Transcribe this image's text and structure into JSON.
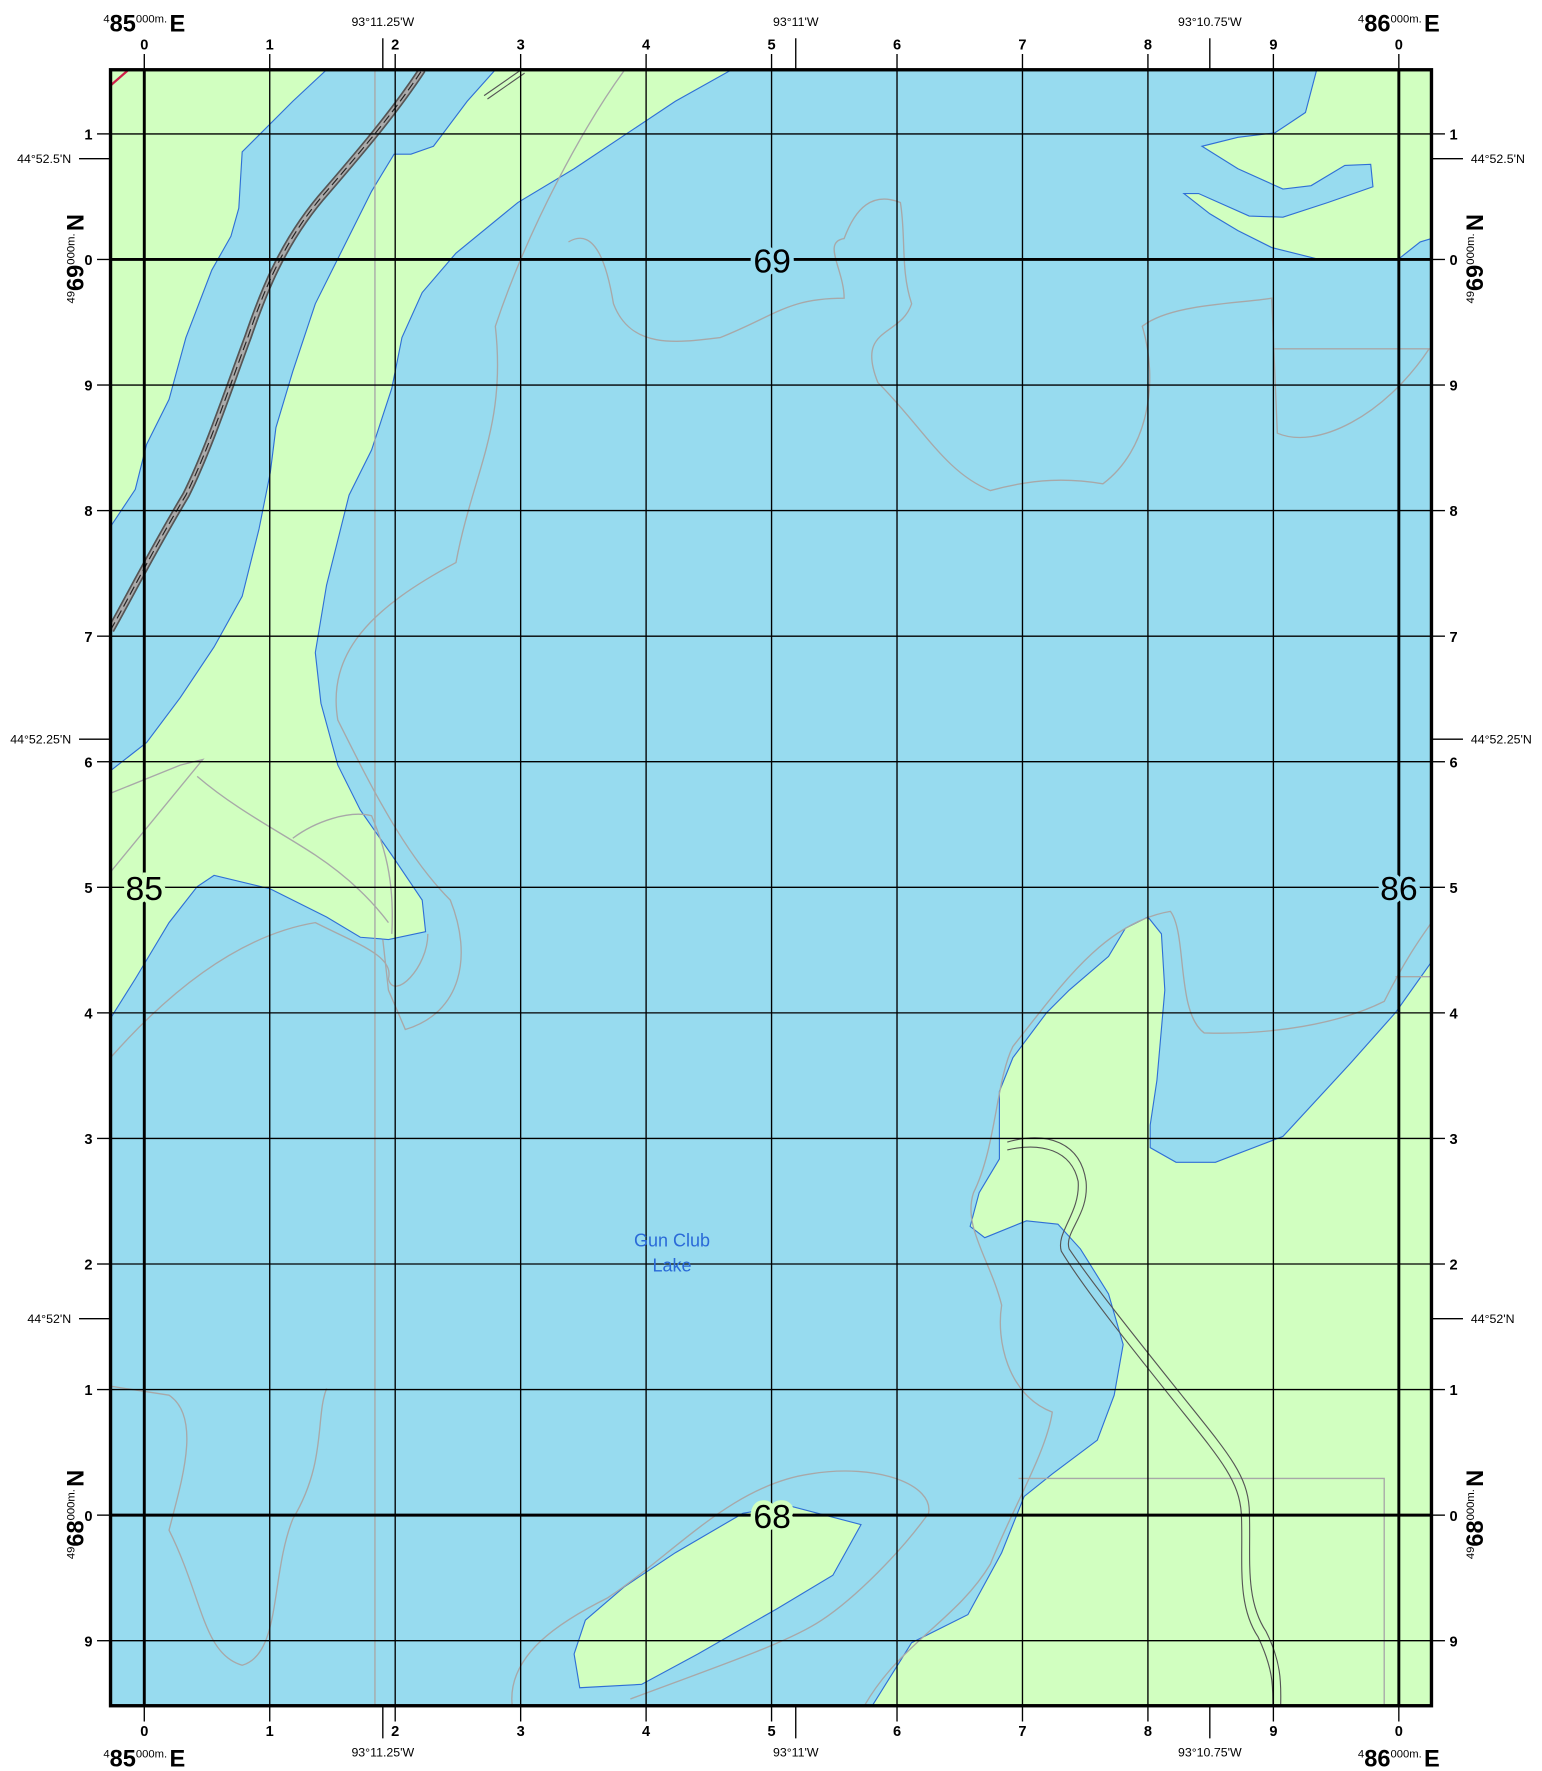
{
  "grid": {
    "easting_labels": [
      "0",
      "1",
      "2",
      "3",
      "4",
      "5",
      "6",
      "7",
      "8",
      "9",
      "0"
    ],
    "northing_labels": [
      "1",
      "0",
      "9",
      "8",
      "7",
      "6",
      "5",
      "4",
      "3",
      "2",
      "1",
      "0",
      "9"
    ]
  },
  "corners": {
    "easting_west": {
      "prefix": "4",
      "major": "85",
      "suffix": "000m.",
      "dir": "E"
    },
    "easting_east": {
      "prefix": "4",
      "major": "86",
      "suffix": "000m.",
      "dir": "E"
    },
    "northing_north": {
      "prefix": "49",
      "major": "69",
      "suffix": "000m.",
      "dir": "N"
    },
    "northing_south": {
      "prefix": "49",
      "major": "68",
      "suffix": "000m.",
      "dir": "N"
    }
  },
  "longitudes": [
    "93°11.25'W",
    "93°11'W",
    "93°10.75'W"
  ],
  "latitudes": [
    "44°52.5'N",
    "44°52.25'N",
    "44°52'N"
  ],
  "grid_zone_labels": {
    "top": "69",
    "bottom": "68",
    "left": "85",
    "right": "86"
  },
  "water_label": [
    "Gun Club",
    "Lake"
  ]
}
